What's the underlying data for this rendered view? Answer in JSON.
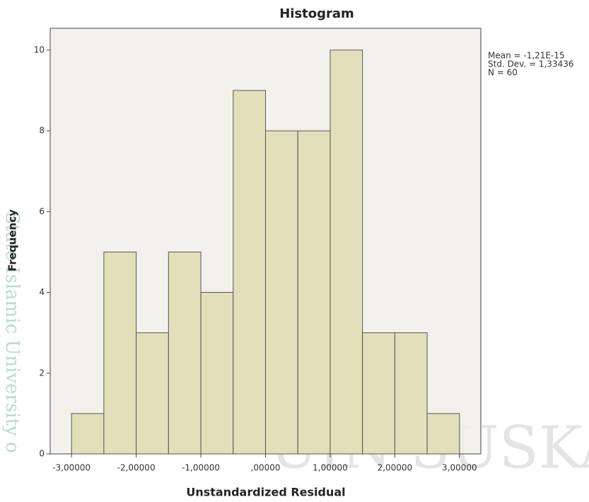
{
  "chart_data": {
    "type": "histogram",
    "title": "Histogram",
    "xlabel": "Unstandardized Residual",
    "ylabel": "Frequency",
    "bins": [
      -3.0,
      -2.5,
      -2.0,
      -1.5,
      -1.0,
      -0.5,
      0.0,
      0.5,
      1.0,
      1.5,
      2.0,
      2.5,
      3.0
    ],
    "values": [
      1,
      5,
      3,
      5,
      4,
      9,
      8,
      8,
      10,
      3,
      3,
      1
    ],
    "color": "#e2ddb6",
    "edge_color": "#555555",
    "background": "#f0efe9",
    "xlim": [
      -3.33,
      3.33
    ],
    "ylim": [
      0,
      10.54
    ],
    "xticks": [
      {
        "value": -3,
        "label": "-3,00000"
      },
      {
        "value": -2,
        "label": "-2,00000"
      },
      {
        "value": -1,
        "label": "-1,00000"
      },
      {
        "value": 0,
        "label": ",00000"
      },
      {
        "value": 1,
        "label": "1,00000"
      },
      {
        "value": 2,
        "label": "2,00000"
      },
      {
        "value": 3,
        "label": "3,00000"
      }
    ],
    "yticks": [
      0,
      2,
      4,
      6,
      8,
      10
    ],
    "annotations": [
      "Mean = -1,21E-15",
      "Std. Dev. = 1,33436",
      "N = 60"
    ],
    "watermark": [
      "State Islamic University o",
      "UIN SUSKA"
    ]
  }
}
